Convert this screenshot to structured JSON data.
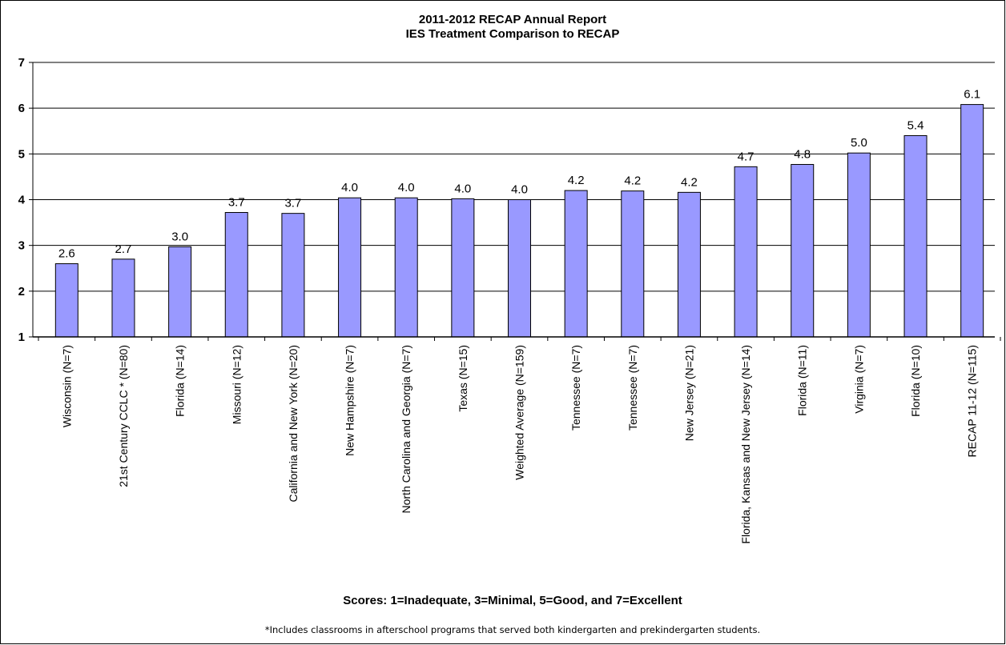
{
  "chart_data": {
    "type": "bar",
    "title": "2011-2012 RECAP Annual Report",
    "subtitle": "IES Treatment Comparison to RECAP",
    "x_label": "Scores: 1=Inadequate, 3=Minimal, 5=Good, and 7=Excellent",
    "footnote": "*Includes classrooms in afterschool programs that served both kindergarten and prekindergarten students.",
    "categories": [
      "Wisconsin (N=7)",
      "21st Century CCLC * (N=80)",
      "Florida (N=14)",
      "Missouri (N=12)",
      "California and New York (N=20)",
      "New Hampshire (N=7)",
      "North Carolina and Georgia (N=7)",
      "Texas (N=15)",
      "Weighted Average (N=159)",
      "Tennessee (N=7)",
      "Tennessee (N=7)",
      "New Jersey (N=21)",
      "Florida, Kansas and New Jersey (N=14)",
      "Florida (N=11)",
      "Virginia (N=7)",
      "Florida (N=10)",
      "RECAP 11-12 (N=115)"
    ],
    "values": [
      2.6,
      2.7,
      2.97,
      3.72,
      3.7,
      4.04,
      4.04,
      4.02,
      4.0,
      4.2,
      4.19,
      4.16,
      4.72,
      4.77,
      5.02,
      5.4,
      6.08
    ],
    "value_labels": [
      "2.6",
      "2.7",
      "3.0",
      "3.7",
      "3.7",
      "4.0",
      "4.0",
      "4.0",
      "4.0",
      "4.2",
      "4.2",
      "4.2",
      "4.7",
      "4.8",
      "5.0",
      "5.4",
      "6.1"
    ],
    "color": "#9999ff",
    "ylim": [
      1,
      7
    ],
    "yticks": [
      1,
      2,
      3,
      4,
      5,
      6,
      7
    ],
    "grid": true
  }
}
